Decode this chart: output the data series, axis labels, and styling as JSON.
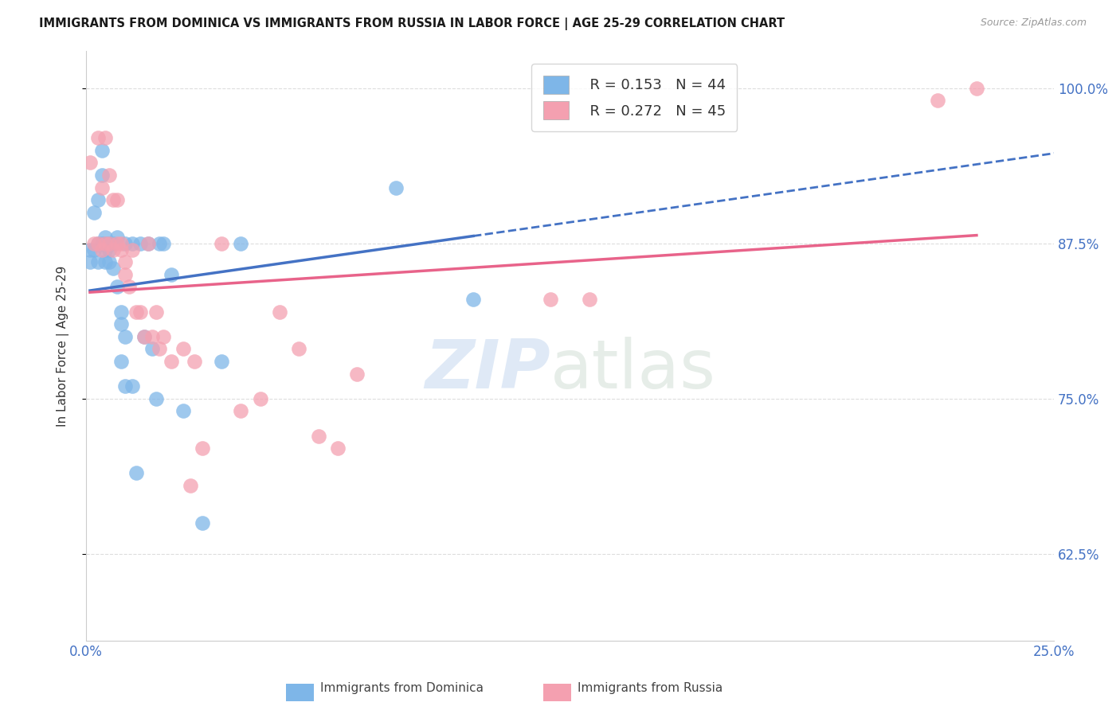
{
  "title": "IMMIGRANTS FROM DOMINICA VS IMMIGRANTS FROM RUSSIA IN LABOR FORCE | AGE 25-29 CORRELATION CHART",
  "source": "Source: ZipAtlas.com",
  "ylabel": "In Labor Force | Age 25-29",
  "xlim": [
    0.0,
    0.25
  ],
  "ylim": [
    0.555,
    1.03
  ],
  "yticks": [
    0.625,
    0.75,
    0.875,
    1.0
  ],
  "ytick_labels": [
    "62.5%",
    "75.0%",
    "87.5%",
    "100.0%"
  ],
  "xticks": [
    0.0,
    0.05,
    0.1,
    0.15,
    0.2,
    0.25
  ],
  "xtick_labels": [
    "0.0%",
    "",
    "",
    "",
    "",
    "25.0%"
  ],
  "dominica_color": "#7EB6E8",
  "russia_color": "#F4A0B0",
  "dominica_R": 0.153,
  "dominica_N": 44,
  "russia_R": 0.272,
  "russia_N": 45,
  "dominica_x": [
    0.001,
    0.001,
    0.002,
    0.002,
    0.003,
    0.003,
    0.003,
    0.004,
    0.004,
    0.004,
    0.005,
    0.005,
    0.005,
    0.005,
    0.006,
    0.006,
    0.006,
    0.007,
    0.007,
    0.008,
    0.008,
    0.009,
    0.009,
    0.009,
    0.01,
    0.01,
    0.01,
    0.012,
    0.012,
    0.013,
    0.014,
    0.015,
    0.016,
    0.017,
    0.018,
    0.019,
    0.02,
    0.022,
    0.025,
    0.03,
    0.035,
    0.04,
    0.08,
    0.1
  ],
  "dominica_y": [
    0.87,
    0.86,
    0.9,
    0.87,
    0.91,
    0.875,
    0.86,
    0.95,
    0.93,
    0.875,
    0.88,
    0.875,
    0.87,
    0.86,
    0.875,
    0.87,
    0.86,
    0.875,
    0.855,
    0.88,
    0.84,
    0.82,
    0.81,
    0.78,
    0.875,
    0.8,
    0.76,
    0.875,
    0.76,
    0.69,
    0.875,
    0.8,
    0.875,
    0.79,
    0.75,
    0.875,
    0.875,
    0.85,
    0.74,
    0.65,
    0.78,
    0.875,
    0.92,
    0.83
  ],
  "russia_x": [
    0.001,
    0.002,
    0.003,
    0.003,
    0.004,
    0.004,
    0.005,
    0.005,
    0.006,
    0.006,
    0.007,
    0.007,
    0.008,
    0.008,
    0.009,
    0.009,
    0.01,
    0.01,
    0.011,
    0.012,
    0.013,
    0.014,
    0.015,
    0.016,
    0.017,
    0.018,
    0.019,
    0.02,
    0.022,
    0.025,
    0.027,
    0.028,
    0.03,
    0.035,
    0.04,
    0.045,
    0.05,
    0.055,
    0.06,
    0.065,
    0.07,
    0.12,
    0.13,
    0.22,
    0.23
  ],
  "russia_y": [
    0.94,
    0.875,
    0.875,
    0.96,
    0.87,
    0.92,
    0.875,
    0.96,
    0.875,
    0.93,
    0.91,
    0.87,
    0.875,
    0.91,
    0.875,
    0.87,
    0.86,
    0.85,
    0.84,
    0.87,
    0.82,
    0.82,
    0.8,
    0.875,
    0.8,
    0.82,
    0.79,
    0.8,
    0.78,
    0.79,
    0.68,
    0.78,
    0.71,
    0.875,
    0.74,
    0.75,
    0.82,
    0.79,
    0.72,
    0.71,
    0.77,
    0.83,
    0.83,
    0.99,
    1.0
  ],
  "background_color": "#ffffff",
  "grid_color": "#dddddd",
  "right_axis_color": "#4472C4",
  "blue_line_color": "#4472C4",
  "pink_line_color": "#E8638A"
}
